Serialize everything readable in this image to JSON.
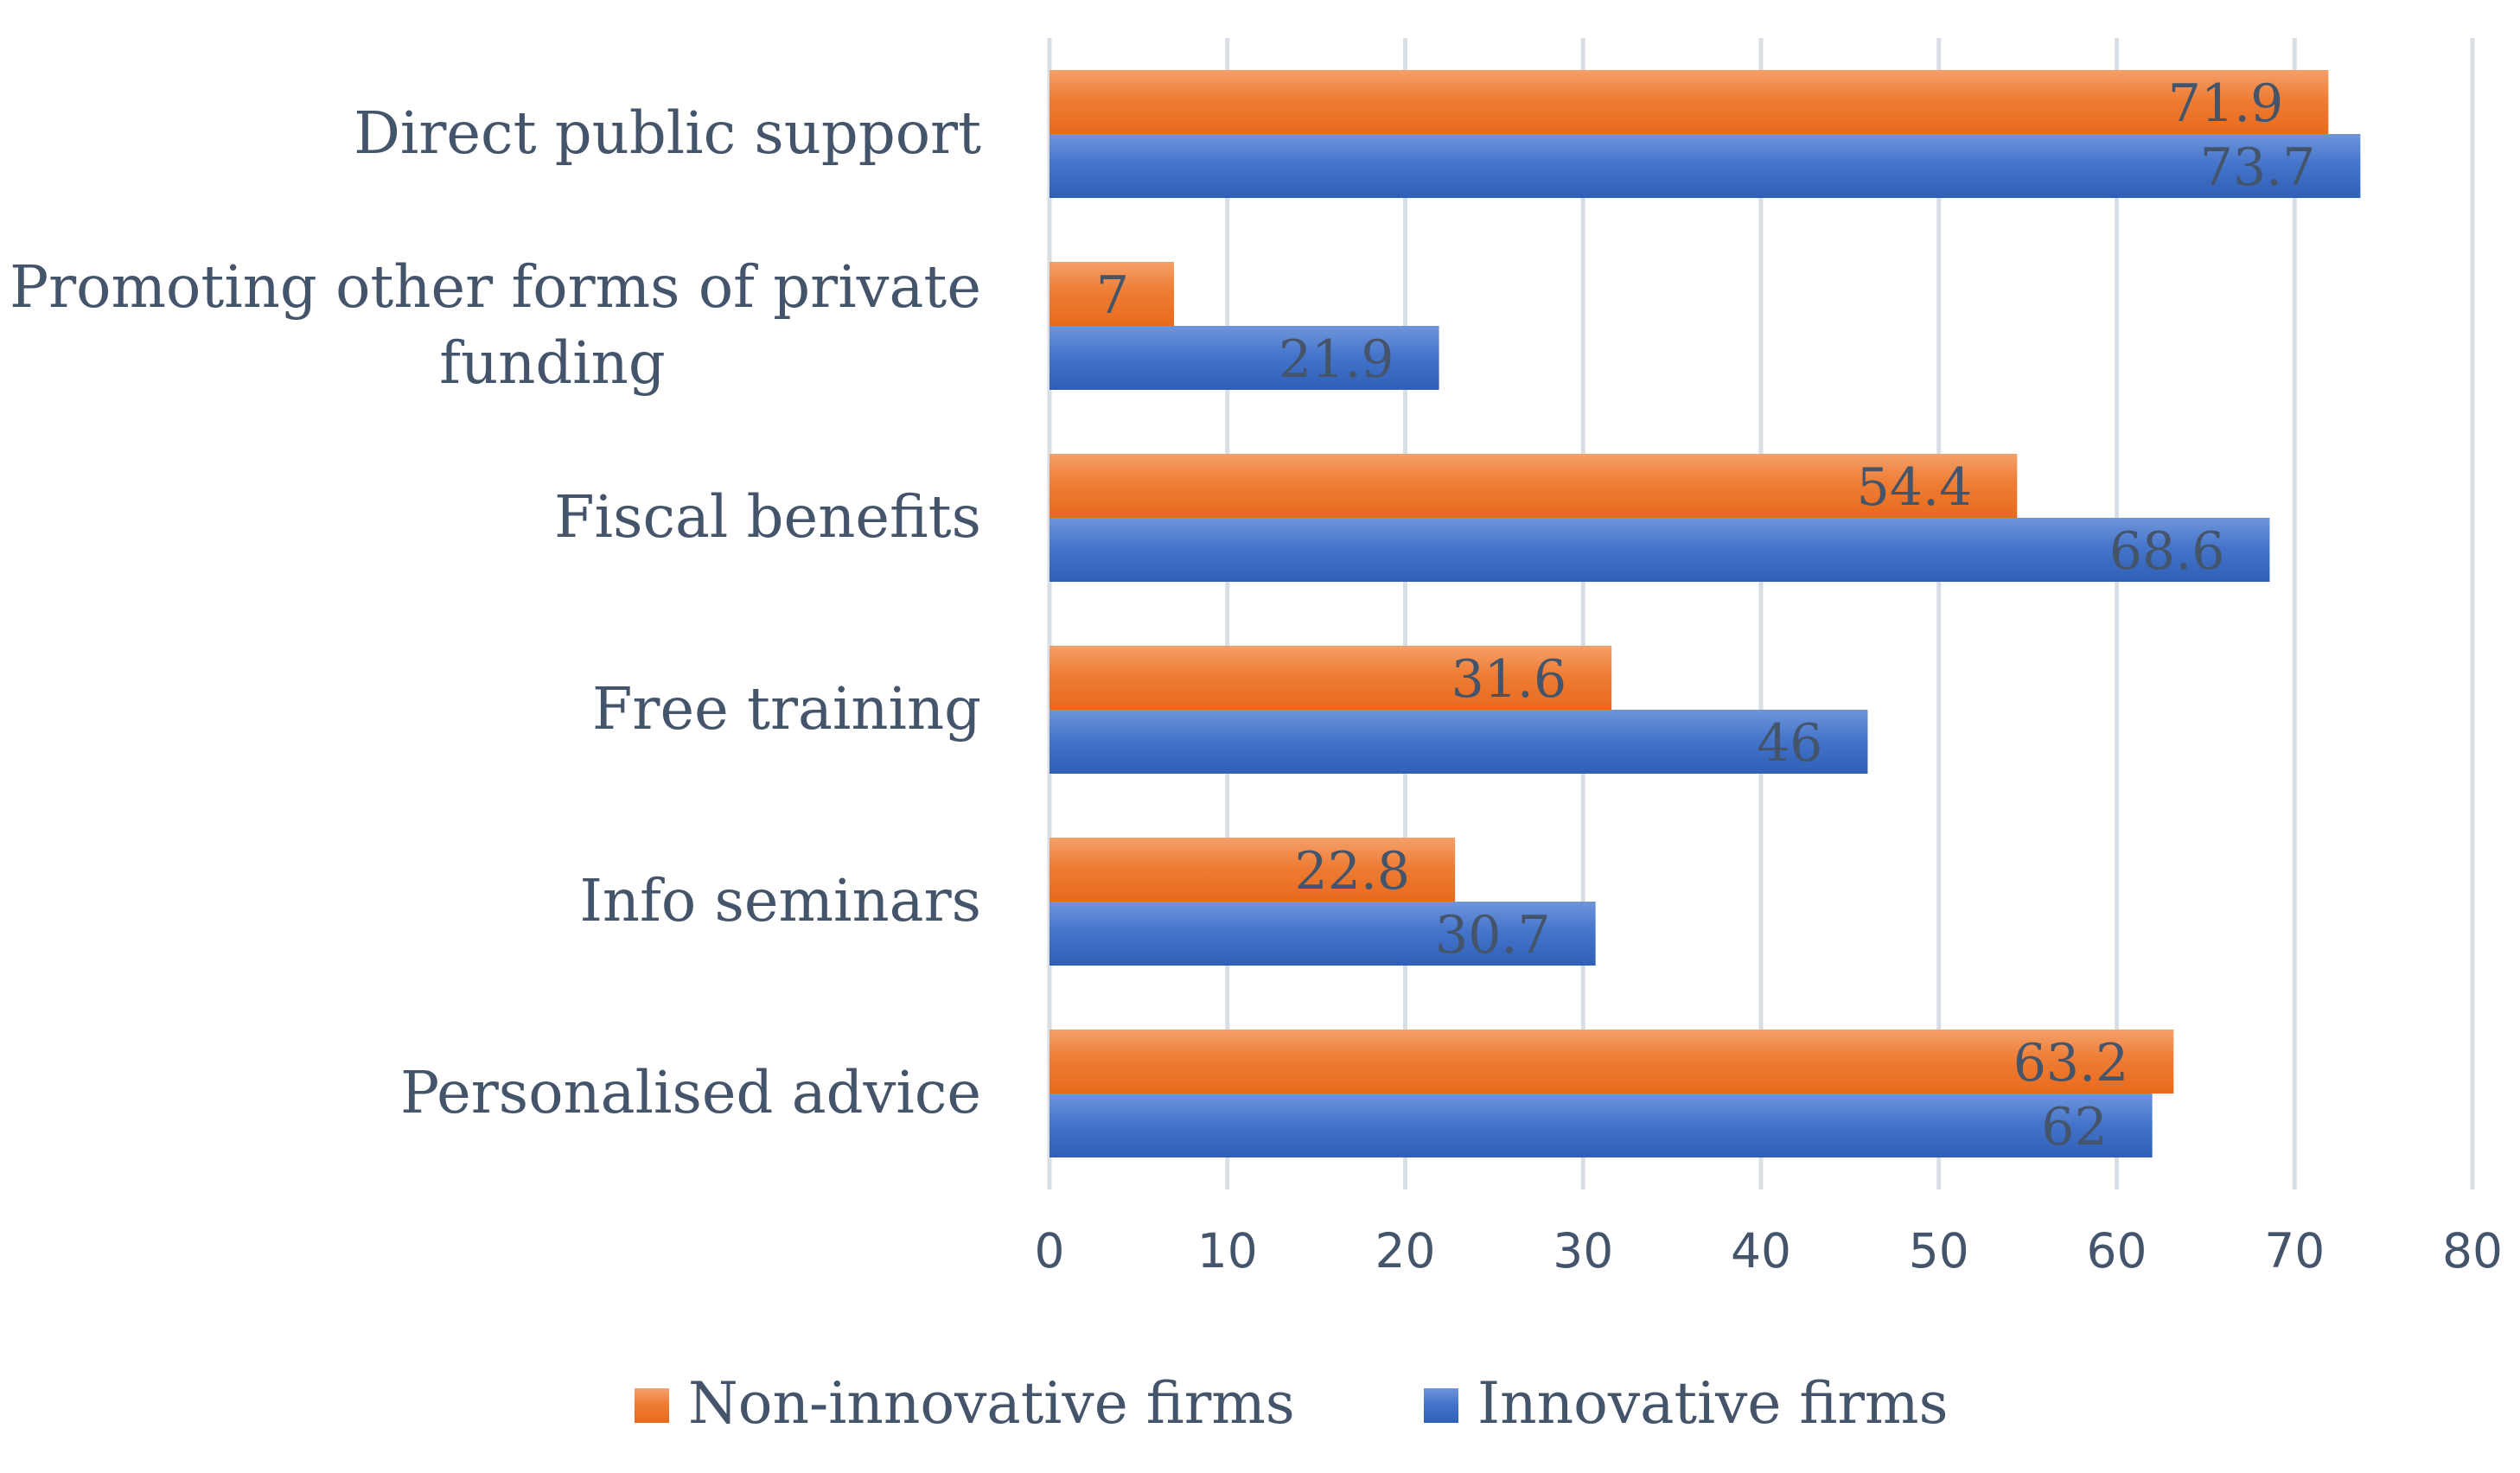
{
  "chart_data": {
    "type": "bar",
    "orientation": "horizontal",
    "categories": [
      "Direct public support",
      "Promoting other forms of private funding",
      "Fiscal benefits",
      "Free training",
      "Info seminars",
      "Personalised advice"
    ],
    "category_lines": [
      [
        "Direct public support"
      ],
      [
        "Promoting other forms of private",
        "funding"
      ],
      [
        "Fiscal benefits"
      ],
      [
        "Free training"
      ],
      [
        "Info seminars"
      ],
      [
        "Personalised advice"
      ]
    ],
    "series": [
      {
        "name": "Non-innovative firms",
        "color": "#ed7d31",
        "values": [
          71.9,
          7,
          54.4,
          31.6,
          22.8,
          63.2
        ],
        "labels": [
          "71.9",
          "7",
          "54.4",
          "31.6",
          "22.8",
          "63.2"
        ]
      },
      {
        "name": "Innovative firms",
        "color": "#4472c4",
        "values": [
          73.7,
          21.9,
          68.6,
          46,
          30.7,
          62
        ],
        "labels": [
          "73.7",
          "21.9",
          "68.6",
          "46",
          "30.7",
          "62"
        ]
      }
    ],
    "xlim": [
      0,
      80
    ],
    "xticks": [
      0,
      10,
      20,
      30,
      40,
      50,
      60,
      70,
      80
    ],
    "xtick_labels": [
      "0",
      "10",
      "20",
      "30",
      "40",
      "50",
      "60",
      "70",
      "80"
    ],
    "grid": true,
    "data_labels": true,
    "legend_position": "bottom",
    "title": "",
    "xlabel": "",
    "ylabel": ""
  }
}
